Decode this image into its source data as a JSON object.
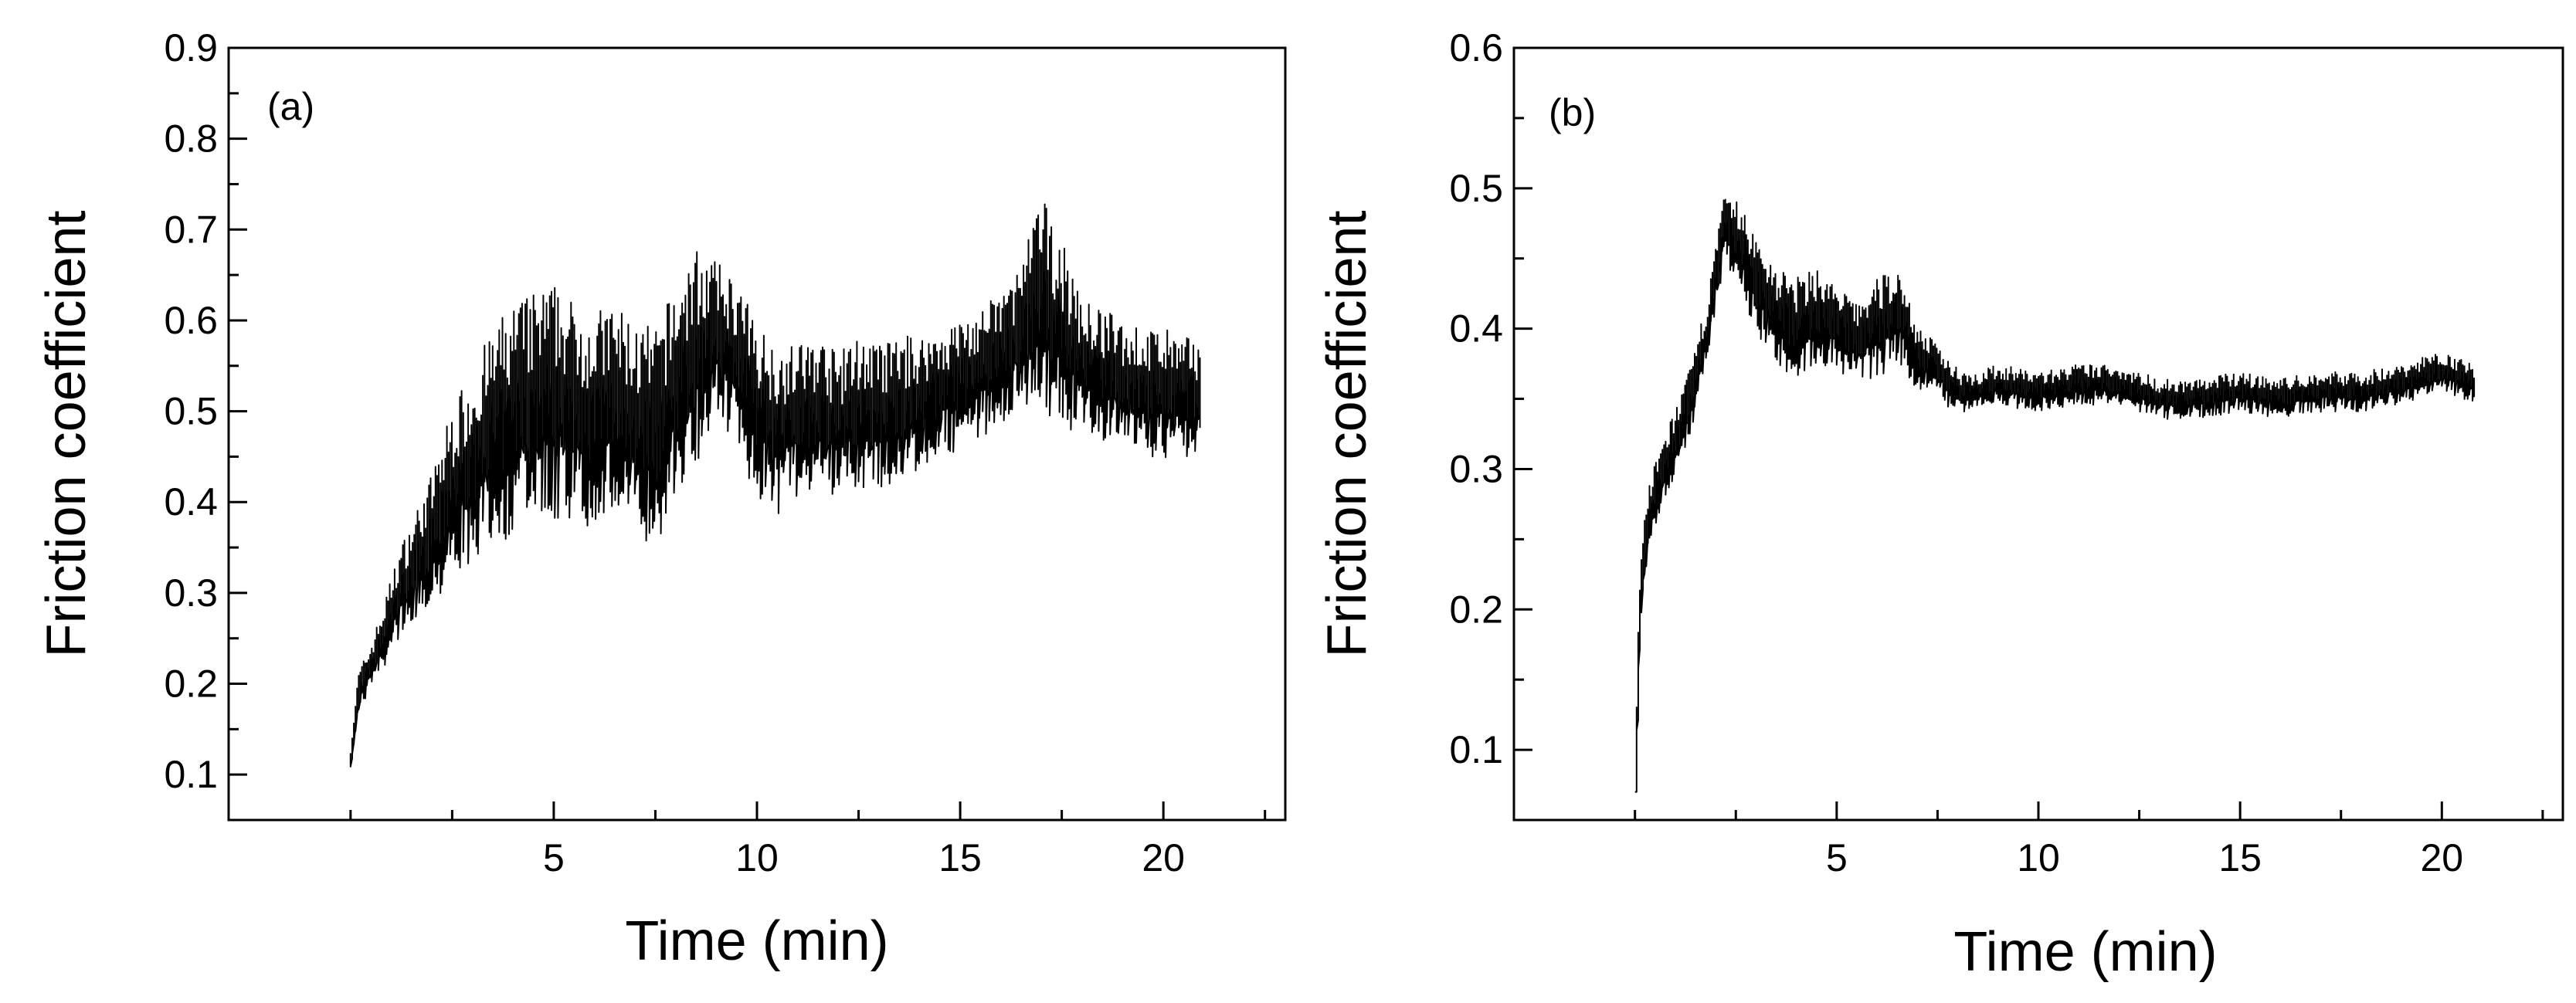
{
  "chart_data": [
    {
      "type": "line",
      "panel_label": "(a)",
      "xlabel": "Time (min)",
      "ylabel": "Friction coefficient",
      "xlim": [
        -3,
        23
      ],
      "ylim": [
        0.05,
        0.9
      ],
      "xticks": [
        5,
        10,
        15,
        20
      ],
      "yticks": [
        0.1,
        0.2,
        0.3,
        0.4,
        0.5,
        0.6,
        0.7,
        0.8,
        0.9
      ],
      "xtick_labels": [
        "5",
        "10",
        "15",
        "20"
      ],
      "ytick_labels": [
        "0.1",
        "0.2",
        "0.3",
        "0.4",
        "0.5",
        "0.6",
        "0.7",
        "0.8",
        "0.9"
      ],
      "grid": false,
      "legend": "none",
      "line_color": "#000000",
      "x": [
        0,
        0.2,
        0.5,
        0.8,
        1.2,
        1.6,
        2.0,
        2.5,
        3.0,
        3.5,
        4.0,
        4.5,
        5.0,
        5.5,
        6.0,
        6.5,
        7.0,
        7.5,
        8.0,
        8.5,
        9.0,
        9.5,
        10.0,
        10.5,
        11.0,
        11.5,
        12.0,
        12.5,
        13.0,
        13.5,
        14.0,
        14.5,
        15.0,
        15.5,
        16.0,
        16.5,
        17.0,
        17.5,
        18.0,
        18.5,
        19.0,
        19.5,
        20.0,
        20.5,
        20.9
      ],
      "y": [
        0.12,
        0.19,
        0.22,
        0.25,
        0.3,
        0.33,
        0.36,
        0.41,
        0.44,
        0.47,
        0.49,
        0.5,
        0.51,
        0.5,
        0.49,
        0.5,
        0.48,
        0.47,
        0.52,
        0.56,
        0.58,
        0.55,
        0.5,
        0.48,
        0.49,
        0.5,
        0.48,
        0.5,
        0.49,
        0.5,
        0.51,
        0.52,
        0.53,
        0.54,
        0.56,
        0.58,
        0.62,
        0.58,
        0.55,
        0.54,
        0.53,
        0.52,
        0.52,
        0.51,
        0.52
      ],
      "spread": [
        0.01,
        0.02,
        0.02,
        0.03,
        0.04,
        0.05,
        0.06,
        0.08,
        0.09,
        0.1,
        0.11,
        0.11,
        0.11,
        0.1,
        0.1,
        0.1,
        0.1,
        0.1,
        0.1,
        0.1,
        0.07,
        0.08,
        0.08,
        0.08,
        0.07,
        0.07,
        0.07,
        0.07,
        0.07,
        0.07,
        0.06,
        0.06,
        0.06,
        0.06,
        0.06,
        0.07,
        0.1,
        0.09,
        0.06,
        0.06,
        0.06,
        0.06,
        0.06,
        0.06,
        0.05
      ]
    },
    {
      "type": "line",
      "panel_label": "(b)",
      "xlabel": "Time (min)",
      "ylabel": "Friction coefficient",
      "xlim": [
        -3,
        23
      ],
      "ylim": [
        0.05,
        0.6
      ],
      "xticks": [
        5,
        10,
        15,
        20
      ],
      "yticks": [
        0.1,
        0.2,
        0.3,
        0.4,
        0.5,
        0.6
      ],
      "xtick_labels": [
        "5",
        "10",
        "15",
        "20"
      ],
      "ytick_labels": [
        "0.1",
        "0.2",
        "0.3",
        "0.4",
        "0.5",
        "0.6"
      ],
      "grid": false,
      "legend": "none",
      "line_color": "#000000",
      "x": [
        0,
        0.1,
        0.3,
        0.6,
        1.0,
        1.4,
        1.8,
        2.2,
        2.6,
        3.0,
        3.5,
        4.0,
        4.5,
        5.0,
        5.5,
        6.0,
        6.5,
        7.0,
        7.5,
        8.0,
        8.5,
        9.0,
        10.0,
        11.0,
        12.0,
        13.0,
        14.0,
        15.0,
        16.0,
        17.0,
        18.0,
        19.0,
        20.0,
        20.8
      ],
      "y": [
        0.07,
        0.2,
        0.26,
        0.29,
        0.32,
        0.35,
        0.4,
        0.47,
        0.46,
        0.43,
        0.41,
        0.4,
        0.41,
        0.4,
        0.39,
        0.4,
        0.41,
        0.38,
        0.37,
        0.355,
        0.355,
        0.36,
        0.355,
        0.36,
        0.36,
        0.35,
        0.35,
        0.355,
        0.35,
        0.355,
        0.355,
        0.36,
        0.37,
        0.36
      ],
      "spread": [
        0.0,
        0.02,
        0.02,
        0.02,
        0.02,
        0.02,
        0.02,
        0.02,
        0.025,
        0.03,
        0.03,
        0.03,
        0.03,
        0.025,
        0.025,
        0.03,
        0.03,
        0.02,
        0.015,
        0.015,
        0.012,
        0.012,
        0.012,
        0.012,
        0.012,
        0.012,
        0.012,
        0.012,
        0.012,
        0.012,
        0.012,
        0.012,
        0.012,
        0.012
      ]
    }
  ]
}
